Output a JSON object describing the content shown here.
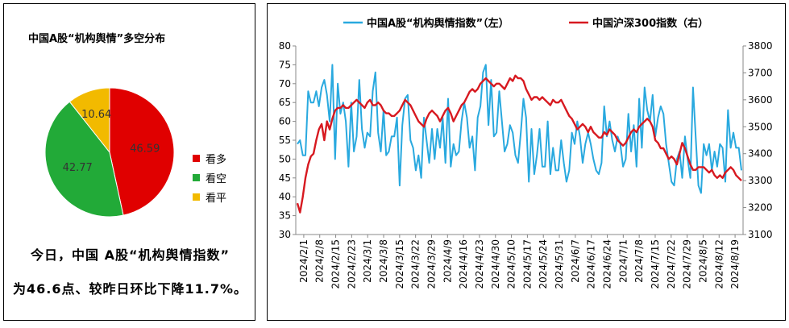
{
  "pie_panel": {
    "title": "中国A股“机构舆情”多空分布",
    "summary_line1": "今日，中国 A股“机构舆情指数”",
    "summary_line2": "为46.6点、较昨日环比下降11.7%。"
  },
  "line_panel": {
    "legend_left": "中国A股“机构舆情指数”（左）",
    "legend_right": "中国沪深300指数（右）"
  },
  "chart_data": [
    {
      "type": "pie",
      "title": "中国A股“机构舆情”多空分布",
      "slices": [
        {
          "label": "看多",
          "value": 46.59,
          "value_label": "46.59",
          "color": "#E00000"
        },
        {
          "label": "看空",
          "value": 42.77,
          "value_label": "42.77",
          "color": "#22AA38"
        },
        {
          "label": "看平",
          "value": 10.64,
          "value_label": "10.64",
          "color": "#F2BA00"
        }
      ],
      "legend_position": "right"
    },
    {
      "type": "line",
      "legend_position": "top",
      "colors": {
        "sentiment": "#29A9DF",
        "index": "#D71920"
      },
      "x_tick_labels": [
        "2024/2/1",
        "2024/2/8",
        "2024/2/15",
        "2024/2/23",
        "2024/3/1",
        "2024/3/8",
        "2024/3/15",
        "2024/3/22",
        "2024/3/29",
        "2024/4/9",
        "2024/4/16",
        "2024/4/23",
        "2024/4/30",
        "2024/5/10",
        "2024/5/17",
        "2024/5/24",
        "2024/5/31",
        "2024/6/7",
        "2024/6/17",
        "2024/6/24",
        "2024/7/1",
        "2024/7/8",
        "2024/7/15",
        "2024/7/22",
        "2024/7/29",
        "2024/8/5",
        "2024/8/12",
        "2024/8/19"
      ],
      "y_left": {
        "min": 30,
        "max": 80,
        "step": 5,
        "ticks": [
          "30",
          "35",
          "40",
          "45",
          "50",
          "55",
          "60",
          "65",
          "70",
          "75",
          "80"
        ]
      },
      "y_right": {
        "min": 3100,
        "max": 3800,
        "step": 100,
        "ticks": [
          "3100",
          "3200",
          "3300",
          "3400",
          "3500",
          "3600",
          "3700",
          "3800"
        ]
      },
      "series": [
        {
          "name": "中国A股“机构舆情指数”（左）",
          "axis": "left",
          "values": [
            54,
            55,
            51,
            51,
            68,
            65,
            65,
            68,
            64,
            69,
            71,
            67,
            60,
            75,
            50,
            70,
            62,
            65,
            60,
            48,
            65,
            52,
            56,
            71,
            58,
            53,
            57,
            56,
            68,
            73,
            57,
            52,
            63,
            51,
            52,
            56,
            56,
            61,
            43,
            59,
            66,
            67,
            55,
            53,
            47,
            51,
            45,
            61,
            55,
            49,
            58,
            50,
            58,
            53,
            61,
            49,
            66,
            48,
            54,
            51,
            52,
            60,
            65,
            61,
            53,
            56,
            47,
            61,
            64,
            73,
            75,
            59,
            71,
            56,
            57,
            68,
            60,
            52,
            54,
            59,
            57,
            51,
            49,
            57,
            66,
            61,
            44,
            58,
            46,
            51,
            58,
            48,
            48,
            60,
            46,
            53,
            47,
            47,
            55,
            49,
            44,
            47,
            57,
            54,
            60,
            56,
            49,
            54,
            57,
            54,
            50,
            47,
            46,
            49,
            64,
            56,
            60,
            55,
            52,
            56,
            54,
            48,
            50,
            62,
            52,
            59,
            48,
            66,
            53,
            69,
            63,
            60,
            67,
            56,
            61,
            64,
            62,
            54,
            49,
            44,
            43,
            50,
            52,
            45,
            56,
            50,
            45,
            69,
            56,
            43,
            41,
            54,
            51,
            54,
            47,
            52,
            48,
            54,
            53,
            44,
            63,
            53,
            57,
            53,
            53,
            47
          ],
          "highlights": {
            "first": 54,
            "last": 46.6
          }
        },
        {
          "name": "中国沪深300指数（右）",
          "axis": "right",
          "values": [
            3216,
            3182,
            3240,
            3310,
            3360,
            3390,
            3400,
            3450,
            3490,
            3510,
            3450,
            3520,
            3490,
            3530,
            3560,
            3570,
            3570,
            3580,
            3570,
            3570,
            3580,
            3590,
            3600,
            3590,
            3580,
            3570,
            3590,
            3600,
            3580,
            3580,
            3590,
            3580,
            3560,
            3550,
            3550,
            3540,
            3540,
            3550,
            3560,
            3580,
            3600,
            3590,
            3580,
            3560,
            3540,
            3520,
            3510,
            3500,
            3530,
            3550,
            3560,
            3550,
            3540,
            3520,
            3540,
            3560,
            3570,
            3550,
            3520,
            3540,
            3560,
            3580,
            3590,
            3610,
            3630,
            3640,
            3630,
            3640,
            3660,
            3670,
            3680,
            3670,
            3660,
            3650,
            3660,
            3660,
            3650,
            3640,
            3660,
            3680,
            3670,
            3690,
            3680,
            3680,
            3670,
            3640,
            3620,
            3600,
            3610,
            3610,
            3600,
            3610,
            3600,
            3590,
            3580,
            3600,
            3590,
            3590,
            3600,
            3580,
            3560,
            3540,
            3530,
            3510,
            3490,
            3500,
            3510,
            3500,
            3480,
            3500,
            3480,
            3470,
            3460,
            3460,
            3480,
            3470,
            3490,
            3480,
            3470,
            3450,
            3440,
            3430,
            3440,
            3460,
            3480,
            3490,
            3480,
            3500,
            3510,
            3520,
            3530,
            3520,
            3500,
            3450,
            3440,
            3420,
            3420,
            3400,
            3380,
            3390,
            3380,
            3360,
            3400,
            3440,
            3420,
            3390,
            3360,
            3340,
            3340,
            3350,
            3350,
            3350,
            3340,
            3330,
            3340,
            3320,
            3310,
            3320,
            3310,
            3330,
            3340,
            3350,
            3340,
            3320,
            3310,
            3300
          ]
        }
      ]
    }
  ]
}
